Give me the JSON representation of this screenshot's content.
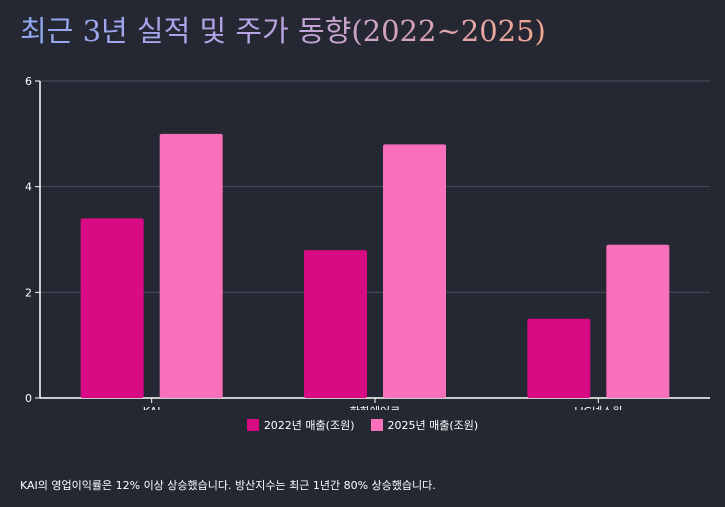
{
  "title": "최근 3년 실적 및 주가 동향(2022~2025)",
  "footnote": "KAI의 영업이익률은 12% 이상 상승했습니다. 방산지수는 최근 1년간 80% 상승했습니다.",
  "colors": {
    "background": "#252833",
    "series_2022": "#d90b84",
    "series_2025": "#f86fbb",
    "grid": "#4a4e5c",
    "axis": "#ffffff",
    "text": "#ffffff"
  },
  "chart_data": {
    "type": "bar",
    "title": "",
    "xlabel": "",
    "ylabel": "",
    "categories": [
      "KAI",
      "한화에어로",
      "LIG넥스원"
    ],
    "series": [
      {
        "name": "2022년 매출(조원)",
        "values": [
          3.4,
          2.8,
          1.5
        ]
      },
      {
        "name": "2025년 매출(조원)",
        "values": [
          5.0,
          4.8,
          2.9
        ]
      }
    ],
    "ylim": [
      0,
      6
    ],
    "yticks": [
      "0",
      "2",
      "4",
      "6"
    ],
    "grid": true,
    "legend": "bottom"
  }
}
